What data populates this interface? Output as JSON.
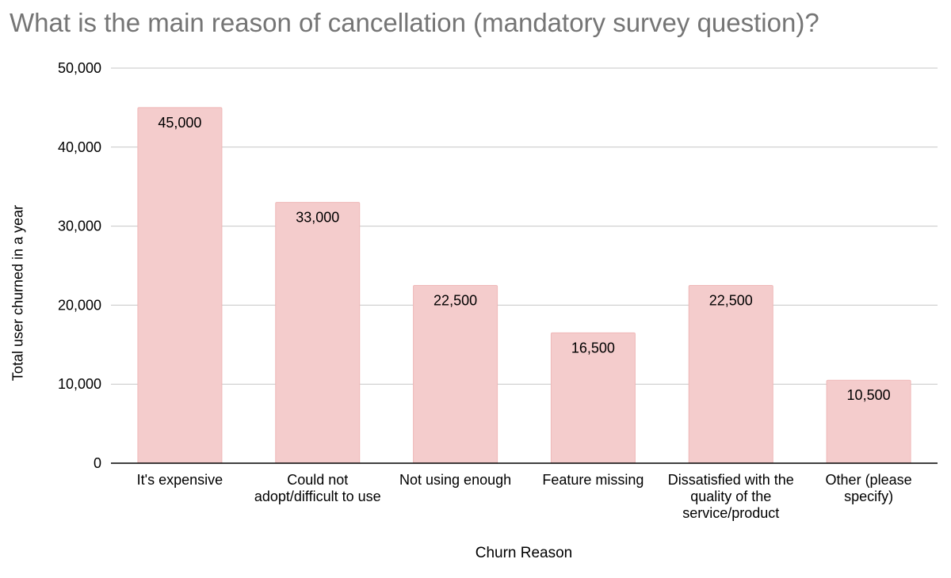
{
  "chart_data": {
    "type": "bar",
    "title": "What is the main reason of cancellation (mandatory survey question)?",
    "xlabel": "Churn Reason",
    "ylabel": "Total user churned in a year",
    "categories": [
      "It's expensive",
      "Could not adopt/difficult to use",
      "Not using enough",
      "Feature missing",
      "Dissatisfied with the quality of the service/product",
      "Other (please specify)"
    ],
    "values": [
      45000,
      33000,
      22500,
      16500,
      22500,
      10500
    ],
    "value_labels": [
      "45,000",
      "33,000",
      "22,500",
      "16,500",
      "22,500",
      "10,500"
    ],
    "ylim": [
      0,
      50000
    ],
    "yticks": [
      0,
      10000,
      20000,
      30000,
      40000,
      50000
    ],
    "ytick_labels": [
      "0",
      "10,000",
      "20,000",
      "30,000",
      "40,000",
      "50,000"
    ],
    "grid": true,
    "legend": "none",
    "colors": {
      "bar": "#f4cccc",
      "bar_edge": "#efb8b8",
      "grid": "#c6c6c6",
      "axis": "#000000",
      "title": "#757575"
    }
  }
}
